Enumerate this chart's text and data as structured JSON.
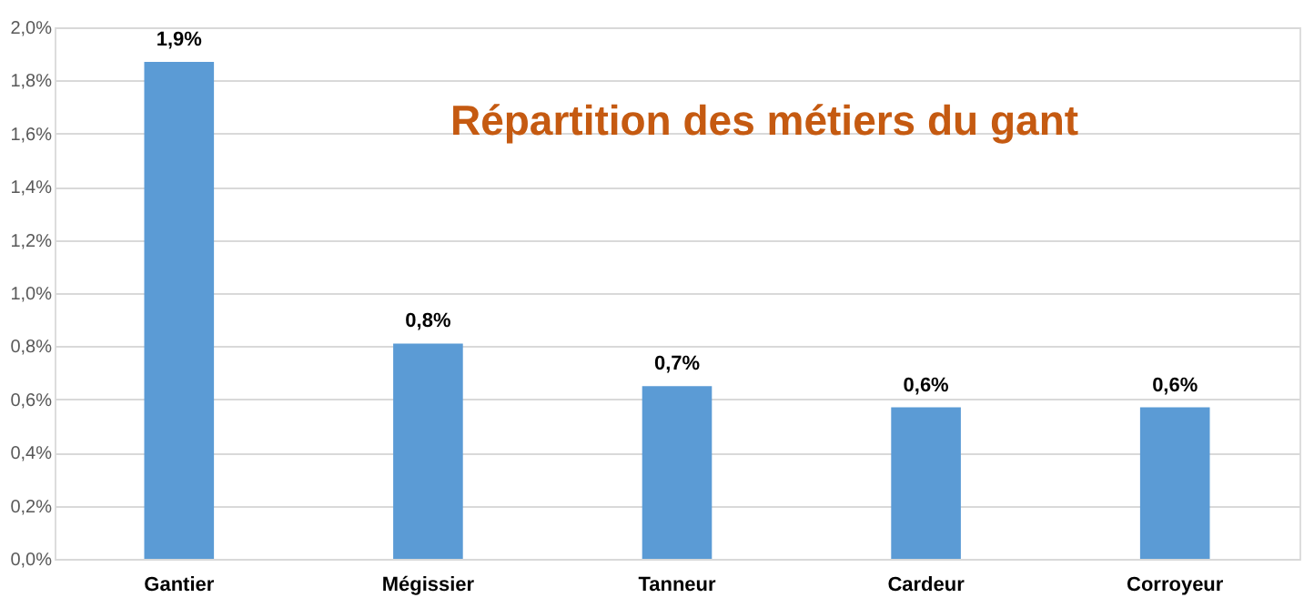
{
  "chart_data": {
    "type": "bar",
    "title": "Répartition des métiers du gant",
    "categories": [
      "Gantier",
      "Mégissier",
      "Tanneur",
      "Cardeur",
      "Corroyeur"
    ],
    "values": [
      1.87,
      0.81,
      0.65,
      0.57,
      0.57
    ],
    "value_labels": [
      "1,9%",
      "0,8%",
      "0,7%",
      "0,6%",
      "0,6%"
    ],
    "color": "#5b9bd5",
    "ylim": [
      0,
      2.0
    ],
    "yticks": [
      {
        "value": 0,
        "label": "0,0%"
      },
      {
        "value": 0.2,
        "label": "0,2%"
      },
      {
        "value": 0.4,
        "label": "0,4%"
      },
      {
        "value": 0.6,
        "label": "0,6%"
      },
      {
        "value": 0.8,
        "label": "0,8%"
      },
      {
        "value": 1.0,
        "label": "1,0%"
      },
      {
        "value": 1.2,
        "label": "1,2%"
      },
      {
        "value": 1.4,
        "label": "1,4%"
      },
      {
        "value": 1.6,
        "label": "1,6%"
      },
      {
        "value": 1.8,
        "label": "1,8%"
      },
      {
        "value": 2.0,
        "label": "2,0%"
      }
    ],
    "grid": "y"
  }
}
